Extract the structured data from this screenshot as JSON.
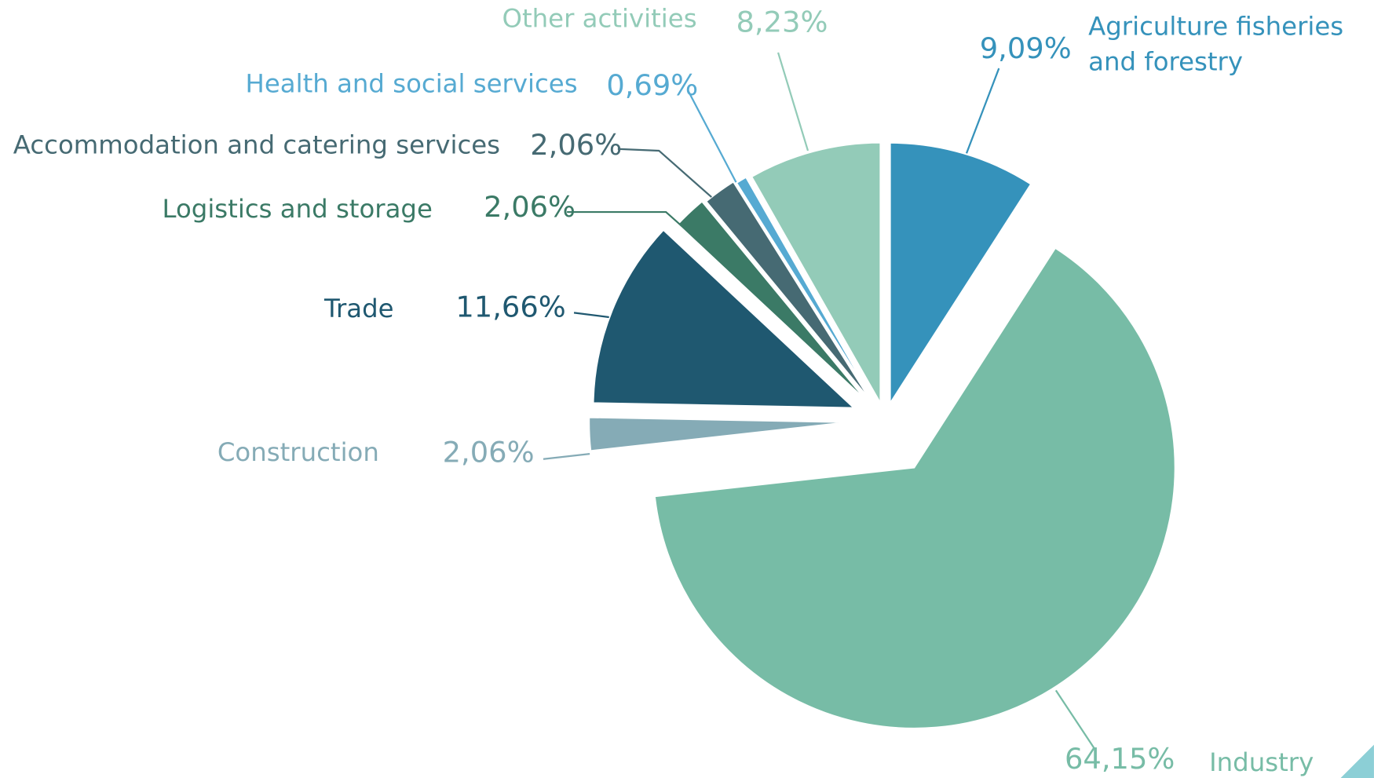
{
  "chart_data": {
    "type": "pie",
    "categories": [
      "Agriculture fisheries and forestry",
      "Industry",
      "Construction",
      "Trade",
      "Logistics and storage",
      "Accommodation and catering services",
      "Health and social services",
      "Other activities"
    ],
    "values": [
      9.09,
      64.15,
      2.06,
      11.66,
      2.06,
      2.06,
      0.69,
      8.23
    ],
    "value_labels": [
      "9,09%",
      "64,15%",
      "2,06%",
      "11,66%",
      "2,06%",
      "2,06%",
      "0,69%",
      "8,23%"
    ],
    "colors": [
      "#3592bb",
      "#77bca6",
      "#85abb6",
      "#1f5870",
      "#3b7a66",
      "#466a73",
      "#56aad2",
      "#93cbb8"
    ]
  }
}
